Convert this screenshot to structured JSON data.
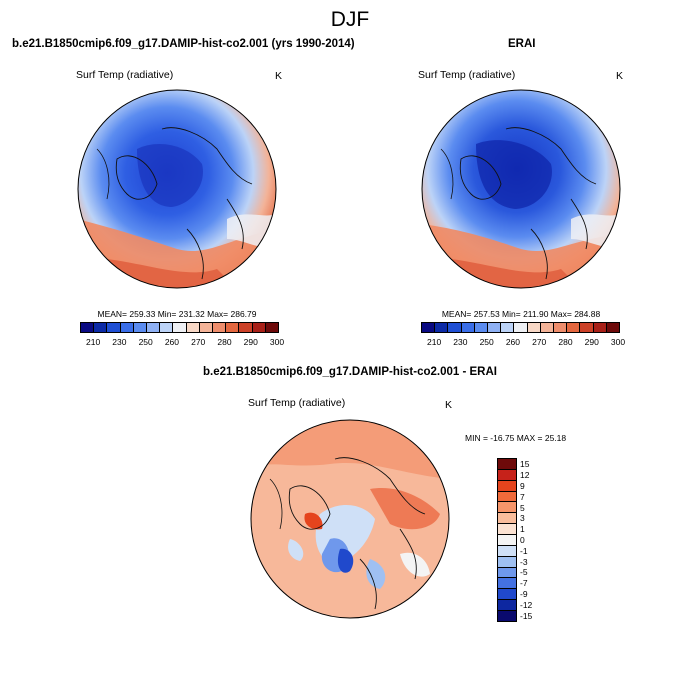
{
  "main_title": "DJF",
  "panels": [
    {
      "title": "b.e21.B1850cmip6.f09_g17.DAMIP-hist-co2.001 (yrs 1990-2014)",
      "variable": "Surf Temp (radiative)",
      "unit": "K",
      "stats": "MEAN= 259.33  Min= 231.32  Max= 286.79"
    },
    {
      "title": "ERAI",
      "variable": "Surf Temp (radiative)",
      "unit": "K",
      "stats": "MEAN= 257.53  Min= 211.90  Max= 284.88"
    },
    {
      "title": "b.e21.B1850cmip6.f09_g17.DAMIP-hist-co2.001 - ERAI",
      "variable": "Surf Temp (radiative)",
      "unit": "K",
      "stats": "MIN = -16.75 MAX =  25.18"
    }
  ],
  "abs_colorbar": {
    "colors": [
      "#0a0a82",
      "#0c2aa6",
      "#1f4fd4",
      "#3a6ee8",
      "#5b8cf0",
      "#8fb1f4",
      "#bcd3f7",
      "#eef0f4",
      "#f8d8c6",
      "#f3b398",
      "#ee8d6c",
      "#e4673f",
      "#cc4128",
      "#a82018",
      "#6e0a0a"
    ],
    "tick_labels": [
      "210",
      "230",
      "250",
      "260",
      "270",
      "280",
      "290",
      "300"
    ]
  },
  "diff_colorbar": {
    "colors": [
      "#6e0a0a",
      "#c6221a",
      "#e5441d",
      "#f06a3a",
      "#f6956a",
      "#f9bd9c",
      "#fbe2d2",
      "#f4f4f4",
      "#cfe0f7",
      "#9fc0f2",
      "#6f98ec",
      "#4471e2",
      "#2049cc",
      "#0d27a0",
      "#0a0a6e"
    ],
    "tick_labels": [
      "15",
      "12",
      "9",
      "7",
      "5",
      "3",
      "1",
      "0",
      "-1",
      "-3",
      "-5",
      "-7",
      "-9",
      "-12",
      "-15"
    ]
  }
}
